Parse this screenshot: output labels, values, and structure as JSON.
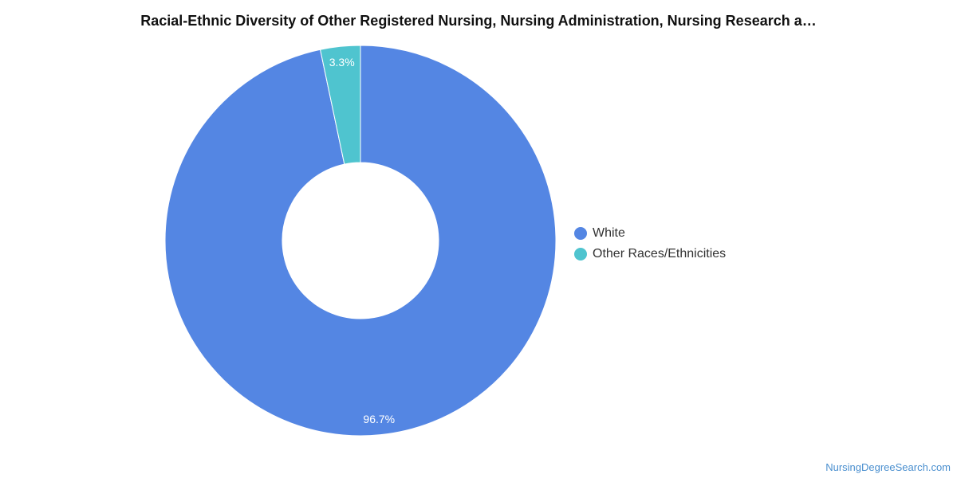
{
  "chart_data": {
    "type": "pie",
    "title": "Racial-Ethnic Diversity of Other Registered Nursing, Nursing Administration, Nursing Research a…",
    "style": "donut",
    "legend_position": "right",
    "series": [
      {
        "name": "White",
        "value": 96.7,
        "label": "96.7%",
        "color": "#5486e3"
      },
      {
        "name": "Other Races/Ethnicities",
        "value": 3.3,
        "label": "3.3%",
        "color": "#4fc4cf"
      }
    ]
  },
  "watermark": "NursingDegreeSearch.com"
}
